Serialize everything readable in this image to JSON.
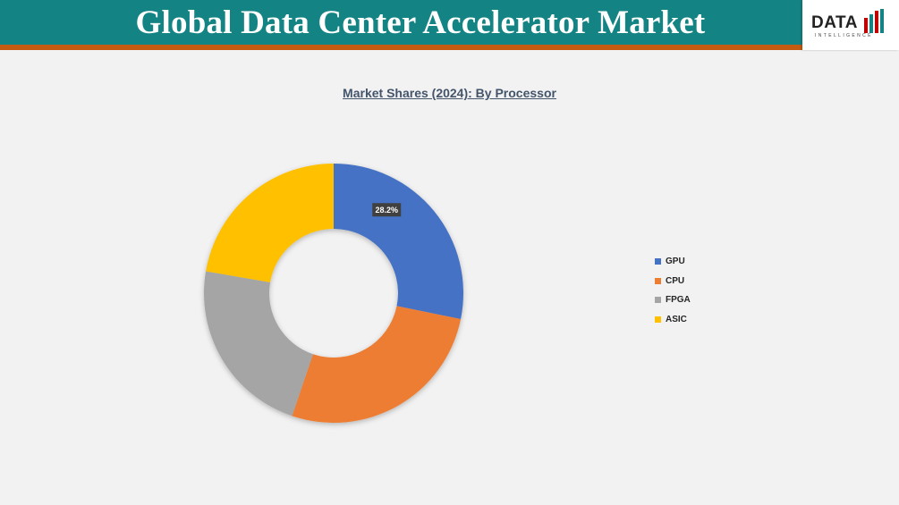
{
  "header": {
    "title": "Global Data Center Accelerator Market"
  },
  "logo": {
    "word": "DATA",
    "subtitle": "INTELLIGENCE"
  },
  "chart_data": {
    "type": "pie",
    "subtype": "donut",
    "title": "Market Shares (2024): By Processor",
    "categories": [
      "GPU",
      "CPU",
      "FPGA",
      "ASIC"
    ],
    "values": [
      28.2,
      27.0,
      22.5,
      22.3
    ],
    "colors": [
      "#4472c4",
      "#ed7d31",
      "#a5a5a5",
      "#ffc000"
    ],
    "data_labels": [
      "28.2%",
      "",
      "",
      ""
    ],
    "legend_position": "right",
    "legend": [
      "GPU",
      "CPU",
      "FPGA",
      "ASIC"
    ]
  }
}
